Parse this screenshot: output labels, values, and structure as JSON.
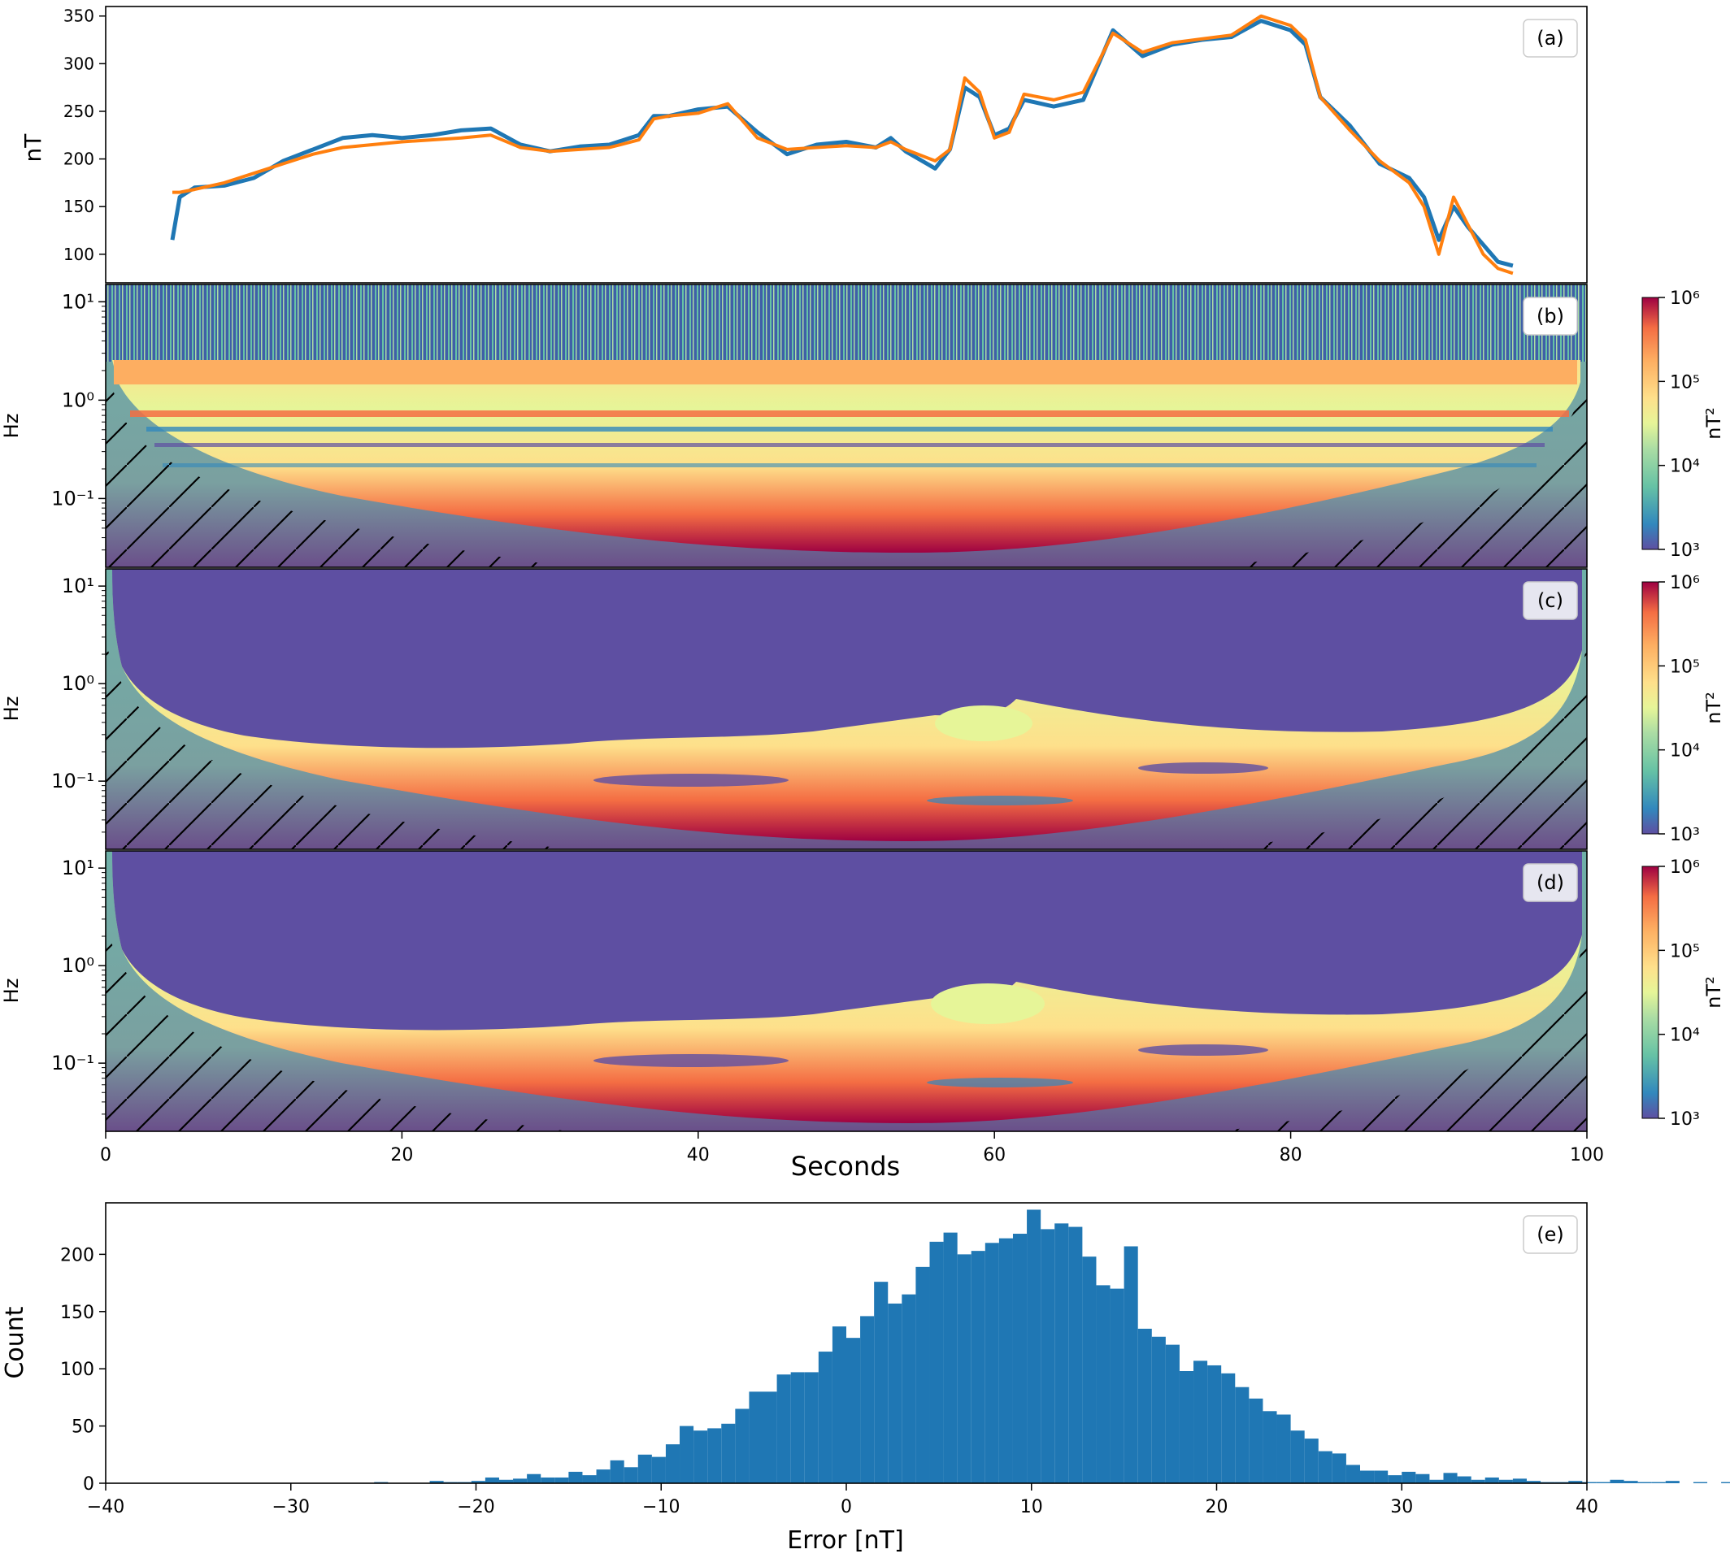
{
  "figure": {
    "panels": [
      {
        "id": "a",
        "label": "(a)",
        "ylabel": "nT"
      },
      {
        "id": "b",
        "label": "(b)",
        "ylabel": "Hz",
        "colorbar_label": "nT²"
      },
      {
        "id": "c",
        "label": "(c)",
        "ylabel": "Hz",
        "colorbar_label": "nT²"
      },
      {
        "id": "d",
        "label": "(d)",
        "ylabel": "Hz",
        "colorbar_label": "nT²"
      },
      {
        "id": "e",
        "label": "(e)",
        "ylabel": "Count",
        "xlabel": "Error [nT]"
      }
    ],
    "shared_xlabel": "Seconds"
  },
  "chart_data": [
    {
      "panel": "a",
      "type": "line",
      "xlabel": "",
      "ylabel": "nT",
      "xlim": [
        0,
        100
      ],
      "ylim": [
        70,
        360
      ],
      "yticks": [
        100,
        150,
        200,
        250,
        300,
        350
      ],
      "series": [
        {
          "color": "#1f77b4",
          "x": [
            4.5,
            5,
            6,
            8,
            10,
            12,
            14,
            16,
            18,
            20,
            22,
            24,
            26,
            28,
            30,
            32,
            34,
            36,
            37,
            38,
            40,
            42,
            44,
            46,
            48,
            50,
            52,
            53,
            54,
            56,
            57,
            58,
            59,
            60,
            61,
            62,
            64,
            66,
            68,
            70,
            72,
            74,
            76,
            78,
            80,
            81,
            82,
            84,
            86,
            88,
            89,
            90,
            91,
            92,
            93,
            94,
            95
          ],
          "y": [
            115,
            160,
            170,
            172,
            180,
            198,
            210,
            222,
            225,
            222,
            225,
            230,
            232,
            215,
            208,
            213,
            215,
            225,
            245,
            245,
            252,
            255,
            228,
            205,
            215,
            218,
            212,
            222,
            208,
            190,
            210,
            275,
            265,
            225,
            232,
            262,
            255,
            262,
            335,
            308,
            320,
            325,
            328,
            345,
            335,
            320,
            265,
            235,
            195,
            180,
            160,
            115,
            150,
            128,
            110,
            92,
            88
          ]
        },
        {
          "color": "#ff7f0e",
          "x": [
            4.5,
            5,
            6,
            8,
            10,
            12,
            14,
            16,
            18,
            20,
            22,
            24,
            26,
            28,
            30,
            32,
            34,
            36,
            37,
            38,
            40,
            42,
            44,
            46,
            48,
            50,
            52,
            53,
            54,
            56,
            57,
            58,
            59,
            60,
            61,
            62,
            64,
            66,
            68,
            70,
            72,
            74,
            76,
            78,
            80,
            81,
            82,
            84,
            86,
            88,
            89,
            90,
            91,
            92,
            93,
            94,
            95
          ],
          "y": [
            165,
            165,
            168,
            175,
            185,
            195,
            205,
            212,
            215,
            218,
            220,
            222,
            225,
            212,
            208,
            210,
            212,
            220,
            242,
            245,
            248,
            258,
            222,
            210,
            212,
            214,
            212,
            218,
            210,
            198,
            210,
            285,
            270,
            222,
            228,
            268,
            262,
            270,
            332,
            312,
            322,
            326,
            330,
            350,
            340,
            325,
            265,
            230,
            198,
            175,
            150,
            100,
            160,
            130,
            100,
            85,
            80
          ]
        }
      ]
    },
    {
      "panel": "b",
      "type": "heatmap",
      "xlim": [
        0,
        100
      ],
      "ylim": [
        0.02,
        15
      ],
      "yscale": "log",
      "yticks": [
        "10⁻¹",
        "10⁰",
        "10¹"
      ],
      "colorbar": {
        "scale": "log",
        "range": [
          1000,
          1000000
        ],
        "ticks": [
          "10³",
          "10⁴",
          "10⁵",
          "10⁶"
        ]
      }
    },
    {
      "panel": "c",
      "type": "heatmap",
      "xlim": [
        0,
        100
      ],
      "ylim": [
        0.02,
        15
      ],
      "yscale": "log",
      "yticks": [
        "10⁻¹",
        "10⁰",
        "10¹"
      ],
      "colorbar": {
        "scale": "log",
        "range": [
          1000,
          1000000
        ],
        "ticks": [
          "10³",
          "10⁴",
          "10⁵",
          "10⁶"
        ]
      }
    },
    {
      "panel": "d",
      "type": "heatmap",
      "xlabel": "Seconds",
      "xlim": [
        0,
        100
      ],
      "xticks": [
        0,
        20,
        40,
        60,
        80,
        100
      ],
      "ylim": [
        0.02,
        15
      ],
      "yscale": "log",
      "yticks": [
        "10⁻¹",
        "10⁰",
        "10¹"
      ],
      "colorbar": {
        "scale": "log",
        "range": [
          1000,
          1000000
        ],
        "ticks": [
          "10³",
          "10⁴",
          "10⁵",
          "10⁶"
        ]
      }
    },
    {
      "panel": "e",
      "type": "bar",
      "xlabel": "Error [nT]",
      "ylabel": "Count",
      "xlim": [
        -40,
        40
      ],
      "ylim": [
        0,
        245
      ],
      "xticks": [
        -40,
        -30,
        -20,
        -10,
        0,
        10,
        20,
        30,
        40
      ],
      "yticks": [
        0,
        50,
        100,
        150,
        200
      ],
      "bin_width": 0.75,
      "bin_start": -25.5,
      "color": "#1f77b4",
      "values": [
        1,
        0,
        0,
        0,
        2,
        1,
        1,
        2,
        5,
        3,
        4,
        8,
        5,
        5,
        10,
        7,
        12,
        20,
        14,
        25,
        23,
        34,
        50,
        46,
        48,
        52,
        65,
        80,
        80,
        95,
        97,
        97,
        115,
        137,
        127,
        146,
        176,
        157,
        165,
        189,
        211,
        219,
        200,
        203,
        210,
        214,
        218,
        239,
        222,
        227,
        224,
        198,
        173,
        170,
        207,
        135,
        128,
        121,
        98,
        107,
        103,
        96,
        84,
        74,
        63,
        60,
        46,
        39,
        28,
        26,
        16,
        11,
        11,
        7,
        10,
        8,
        3,
        9,
        6,
        3,
        5,
        3,
        4,
        2,
        1,
        1,
        2,
        1,
        1,
        3,
        2,
        1,
        1,
        2,
        0,
        1,
        0,
        1,
        1,
        0,
        1,
        0,
        2,
        0,
        1,
        0,
        1,
        1,
        0,
        1
      ]
    }
  ]
}
